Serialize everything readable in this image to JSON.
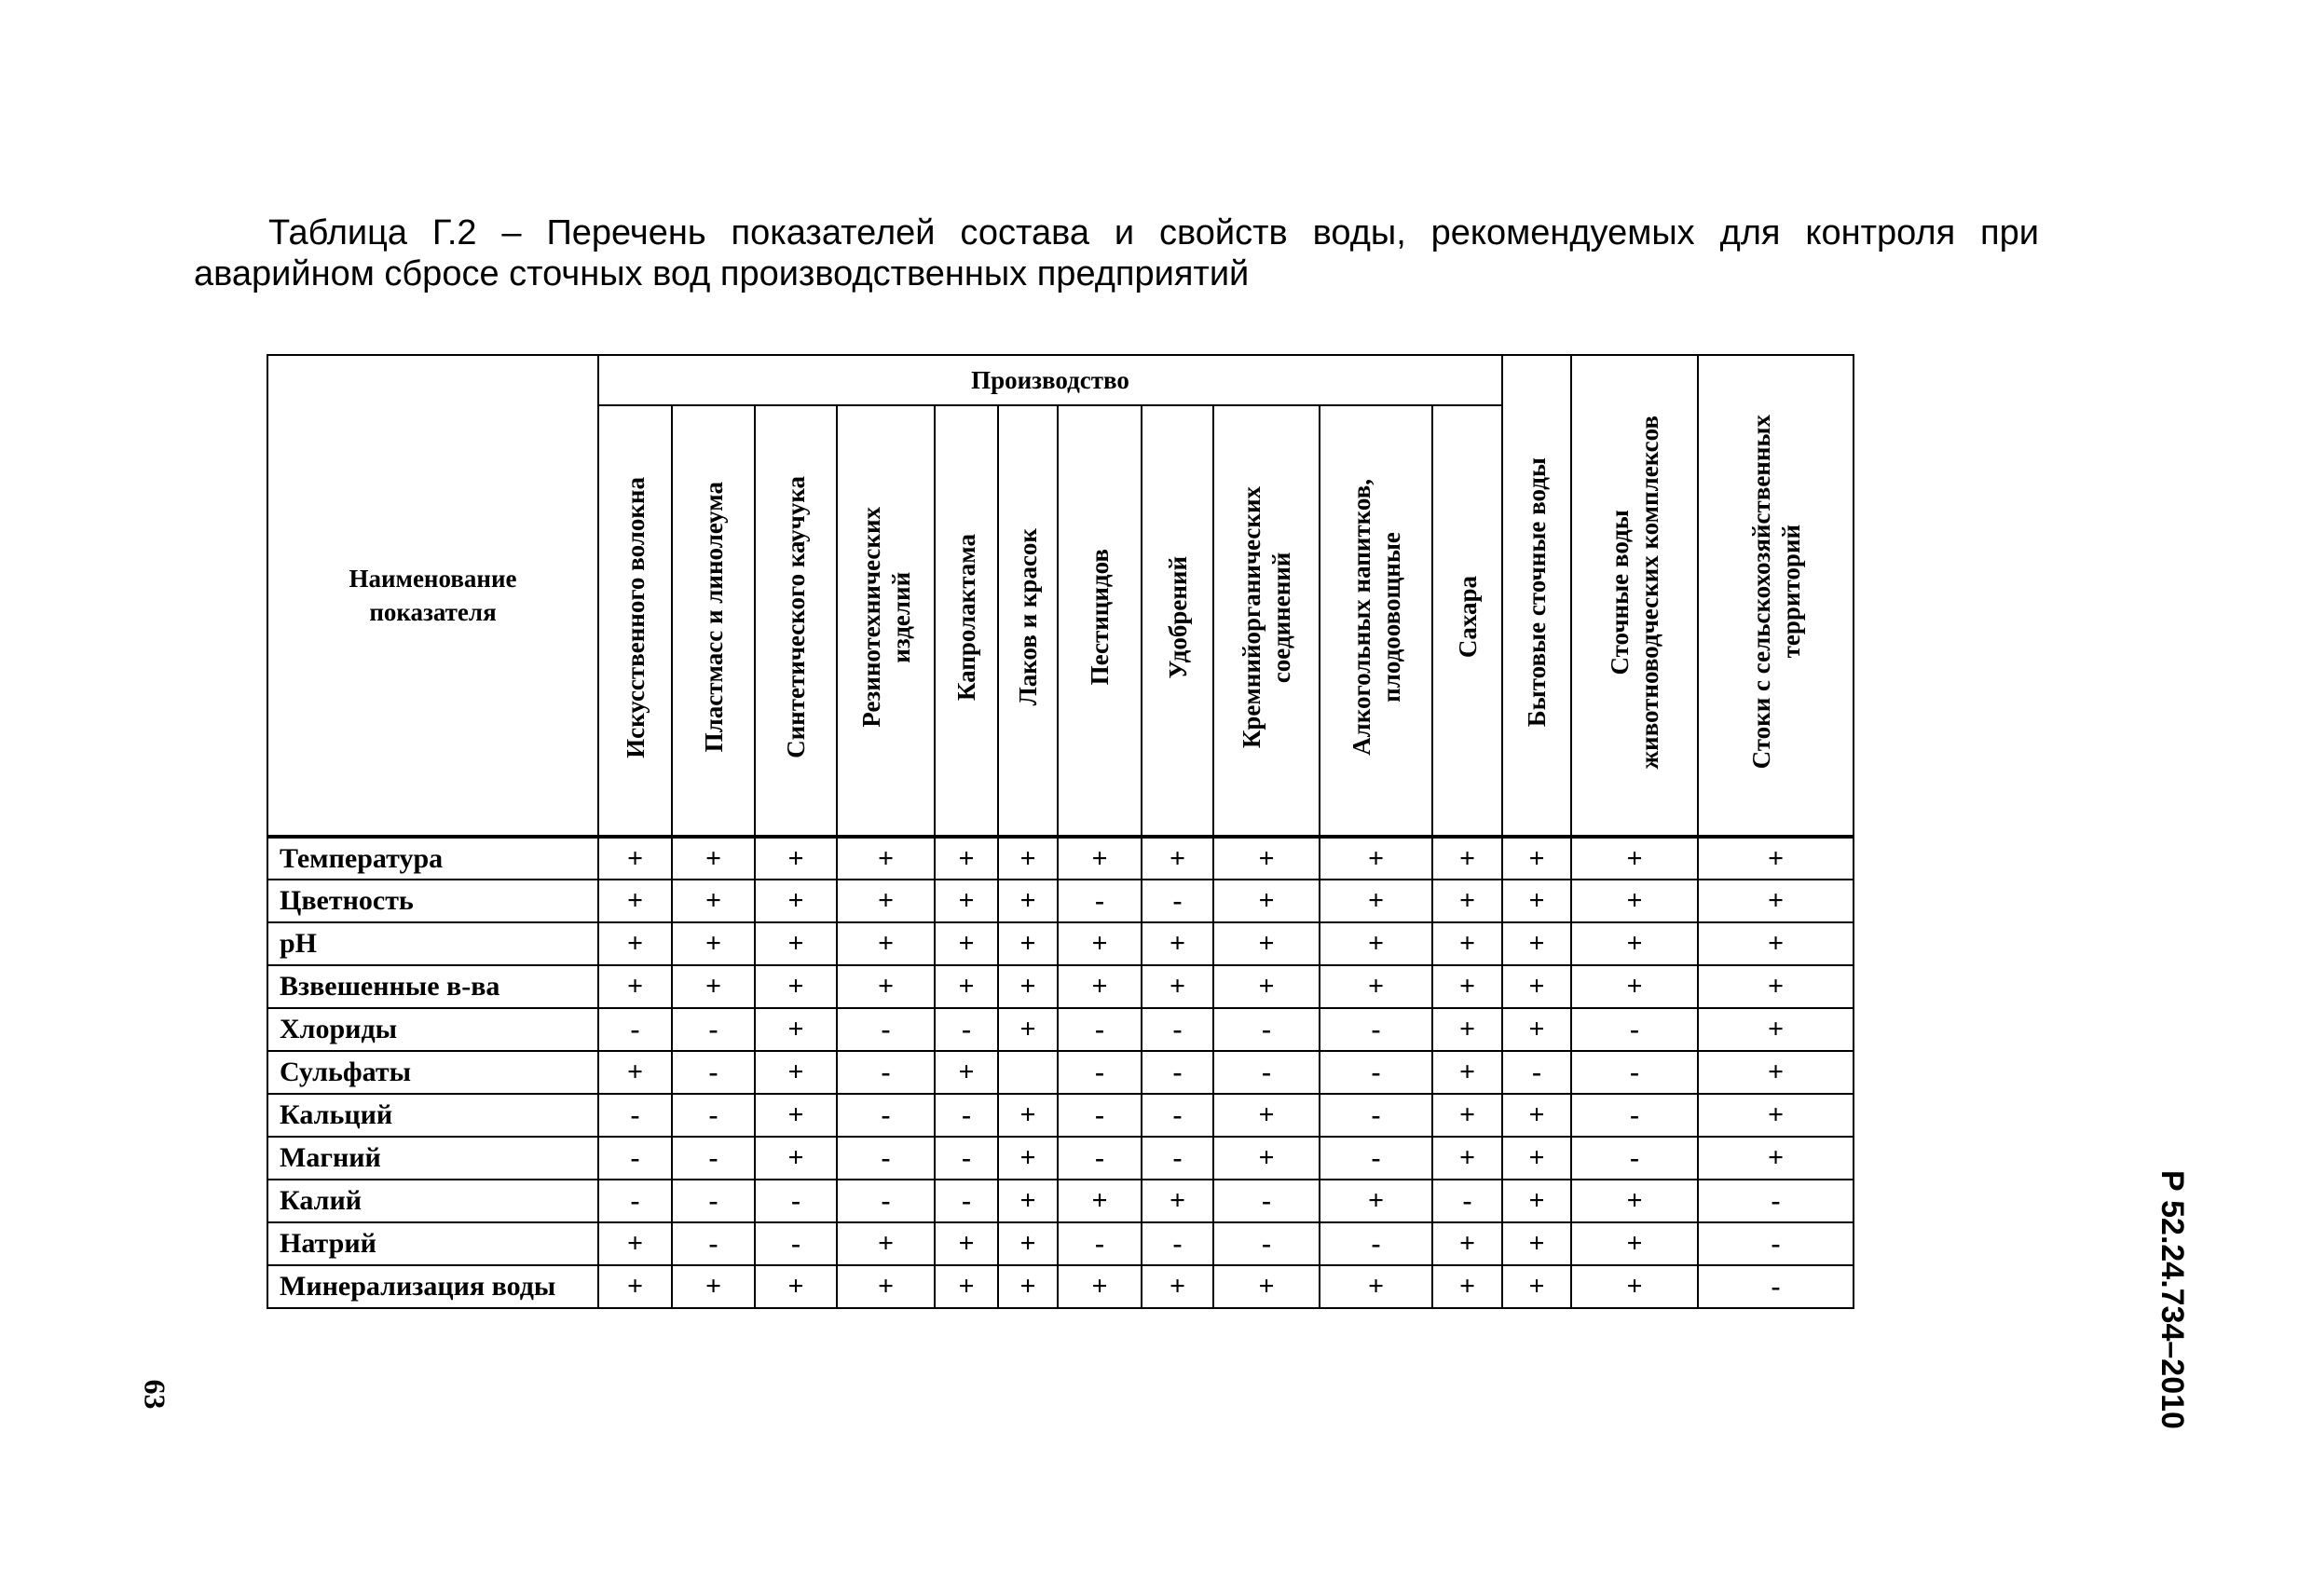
{
  "title": {
    "line1": "Таблица Г.2 – Перечень показателей состава и свойств воды, рекомендуемых для контроля при",
    "line2": "аварийном сбросе сточных вод производственных предприятий"
  },
  "table": {
    "name_header": "Наименование показателя",
    "group_header": "Производство",
    "columns": [
      "Искусственного волокна",
      "Пластмасс и линолеума",
      "Синтетического каучука",
      "Резинотехнических\nизделий",
      "Капролактама",
      "Лаков и красок",
      "Пестицидов",
      "Удобрений",
      "Кремнийорганических\nсоединений",
      "Алкогольных напитков,\nплодоовощные",
      "Сахара",
      "Бытовые сточные воды",
      "Сточные воды\nживотноводческих комплексов",
      "Стоки с сельскохозяйственных\nтерриторий"
    ],
    "rows": [
      {
        "name": "Температура",
        "values": [
          "+",
          "+",
          "+",
          "+",
          "+",
          "+",
          "+",
          "+",
          "+",
          "+",
          "+",
          "+",
          "+",
          "+"
        ]
      },
      {
        "name": "Цветность",
        "values": [
          "+",
          "+",
          "+",
          "+",
          "+",
          "+",
          "-",
          "-",
          "+",
          "+",
          "+",
          "+",
          "+",
          "+"
        ]
      },
      {
        "name": "pH",
        "values": [
          "+",
          "+",
          "+",
          "+",
          "+",
          "+",
          "+",
          "+",
          "+",
          "+",
          "+",
          "+",
          "+",
          "+"
        ]
      },
      {
        "name": "Взвешенные в-ва",
        "values": [
          "+",
          "+",
          "+",
          "+",
          "+",
          "+",
          "+",
          "+",
          "+",
          "+",
          "+",
          "+",
          "+",
          "+"
        ]
      },
      {
        "name": "Хлориды",
        "values": [
          "-",
          "-",
          "+",
          "-",
          "-",
          "+",
          "-",
          "-",
          "-",
          "-",
          "+",
          "+",
          "-",
          "+"
        ]
      },
      {
        "name": "Сульфаты",
        "values": [
          "+",
          "-",
          "+",
          "-",
          "+",
          "",
          "-",
          "-",
          "-",
          "-",
          "+",
          "-",
          "-",
          "+"
        ]
      },
      {
        "name": "Кальций",
        "values": [
          "-",
          "-",
          "+",
          "-",
          "-",
          "+",
          "-",
          "-",
          "+",
          "-",
          "+",
          "+",
          "-",
          "+"
        ]
      },
      {
        "name": "Магний",
        "values": [
          "-",
          "-",
          "+",
          "-",
          "-",
          "+",
          "-",
          "-",
          "+",
          "-",
          "+",
          "+",
          "-",
          "+"
        ]
      },
      {
        "name": "Калий",
        "values": [
          "-",
          "-",
          "-",
          "-",
          "-",
          "+",
          "+",
          "+",
          "-",
          "+",
          "-",
          "+",
          "+",
          "-"
        ]
      },
      {
        "name": "Натрий",
        "values": [
          "+",
          "-",
          "-",
          "+",
          "+",
          "+",
          "-",
          "-",
          "-",
          "-",
          "+",
          "+",
          "+",
          "-"
        ]
      },
      {
        "name": "Минерализация воды",
        "values": [
          "+",
          "+",
          "+",
          "+",
          "+",
          "+",
          "+",
          "+",
          "+",
          "+",
          "+",
          "+",
          "+",
          "-"
        ]
      }
    ]
  },
  "side_label": "Р 52.24.734–2010",
  "page_number": "63"
}
